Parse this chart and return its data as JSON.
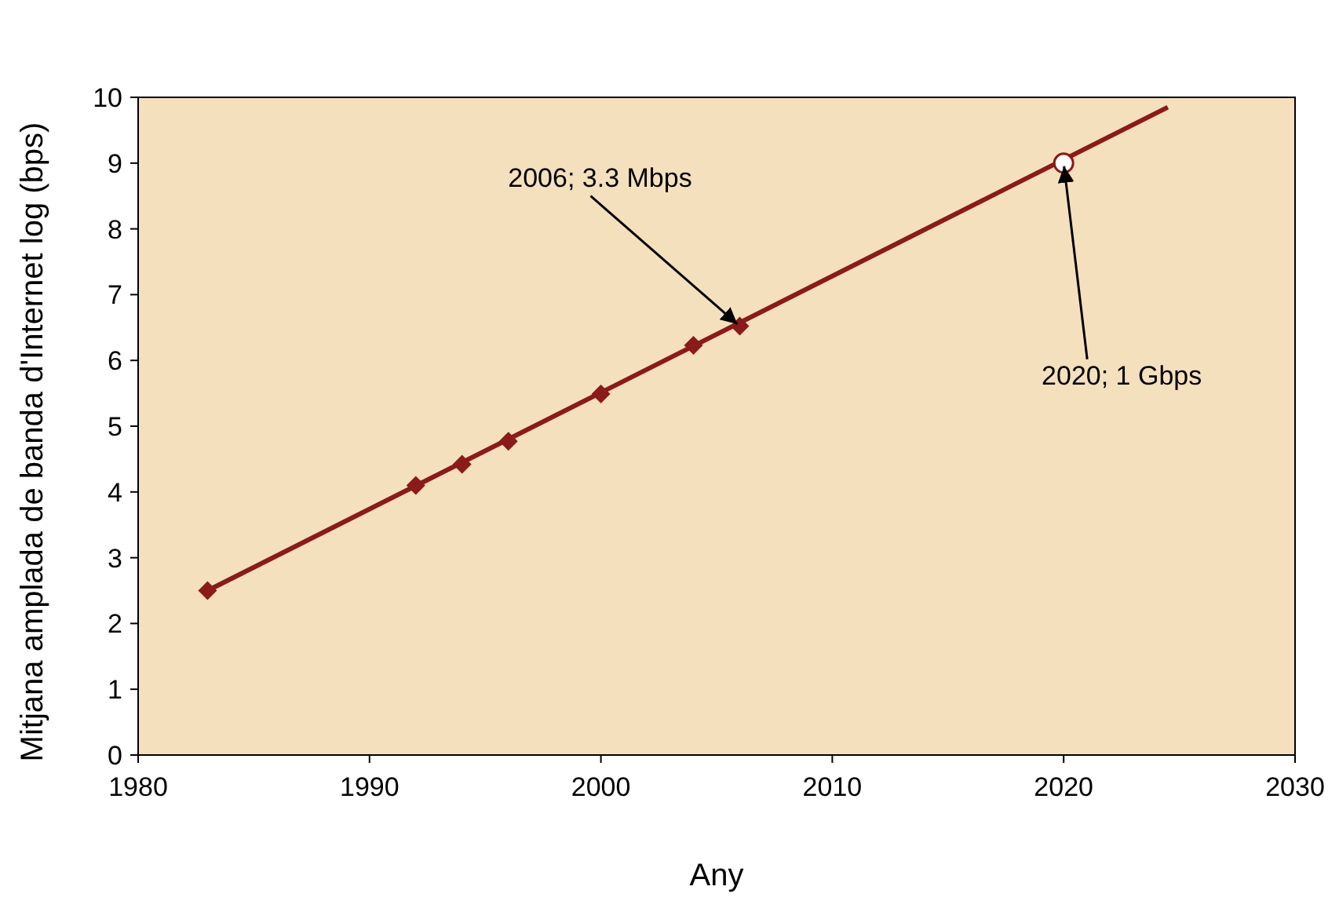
{
  "chart_data": {
    "type": "line",
    "xlabel": "Any",
    "ylabel": "Mitjana amplada de banda d'Internet log (bps)",
    "xlim": [
      1980,
      2030
    ],
    "ylim": [
      0,
      10
    ],
    "xticks": [
      1980,
      1990,
      2000,
      2010,
      2020,
      2030
    ],
    "yticks": [
      0,
      1,
      2,
      3,
      4,
      5,
      6,
      7,
      8,
      9,
      10
    ],
    "grid": false,
    "series": [
      {
        "color": "#8b1a1a",
        "marker": "none",
        "x": [
          1983,
          2024.5
        ],
        "values": [
          2.5,
          9.85
        ]
      },
      {
        "type": "scatter",
        "color": "#8b1a1a",
        "marker": "diamond",
        "x": [
          1983,
          1992,
          1994,
          1996,
          2000,
          2004,
          2006
        ],
        "values": [
          2.5,
          4.1,
          4.42,
          4.77,
          5.49,
          6.23,
          6.52
        ]
      },
      {
        "type": "scatter",
        "color": "#8b1a1a",
        "marker": "circle",
        "x": [
          2020
        ],
        "values": [
          9
        ]
      }
    ],
    "annotations": [
      {
        "text": "2006; 3.3 Mbps",
        "x": 2006,
        "y": 6.52
      },
      {
        "text": "2020; 1 Gbps",
        "x": 2020,
        "y": 9
      }
    ]
  }
}
